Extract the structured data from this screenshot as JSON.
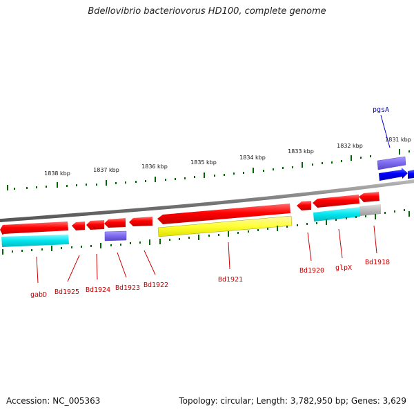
{
  "title": "Bdellovibrio bacteriovorus HD100, complete genome",
  "footer": {
    "accession": "Accession: NC_005363",
    "info": "Topology: circular; Length: 3,782,950 bp; Genes: 3,629"
  },
  "axis_labels": [
    "1838 kbp",
    "1837 kbp",
    "1836 kbp",
    "1835 kbp",
    "1834 kbp",
    "1833 kbp",
    "1832 kbp",
    "1831 kbp"
  ],
  "gene_labels": [
    "gabD",
    "Bd1925",
    "Bd1924",
    "Bd1923",
    "Bd1922",
    "Bd1921",
    "Bd1920",
    "glpX",
    "Bd1918",
    "pgsA"
  ],
  "colors": {
    "cds": "#ff0000",
    "gene_forward": "#0000ff",
    "label_reverse": "#cc0000",
    "label_forward": "#0000cc",
    "tick": "#006600",
    "backbone": "#888888",
    "cyan": "#00e5ee",
    "yellow": "#ffff00",
    "purple": "#7b68ee",
    "gray": "#bbbbbb"
  }
}
